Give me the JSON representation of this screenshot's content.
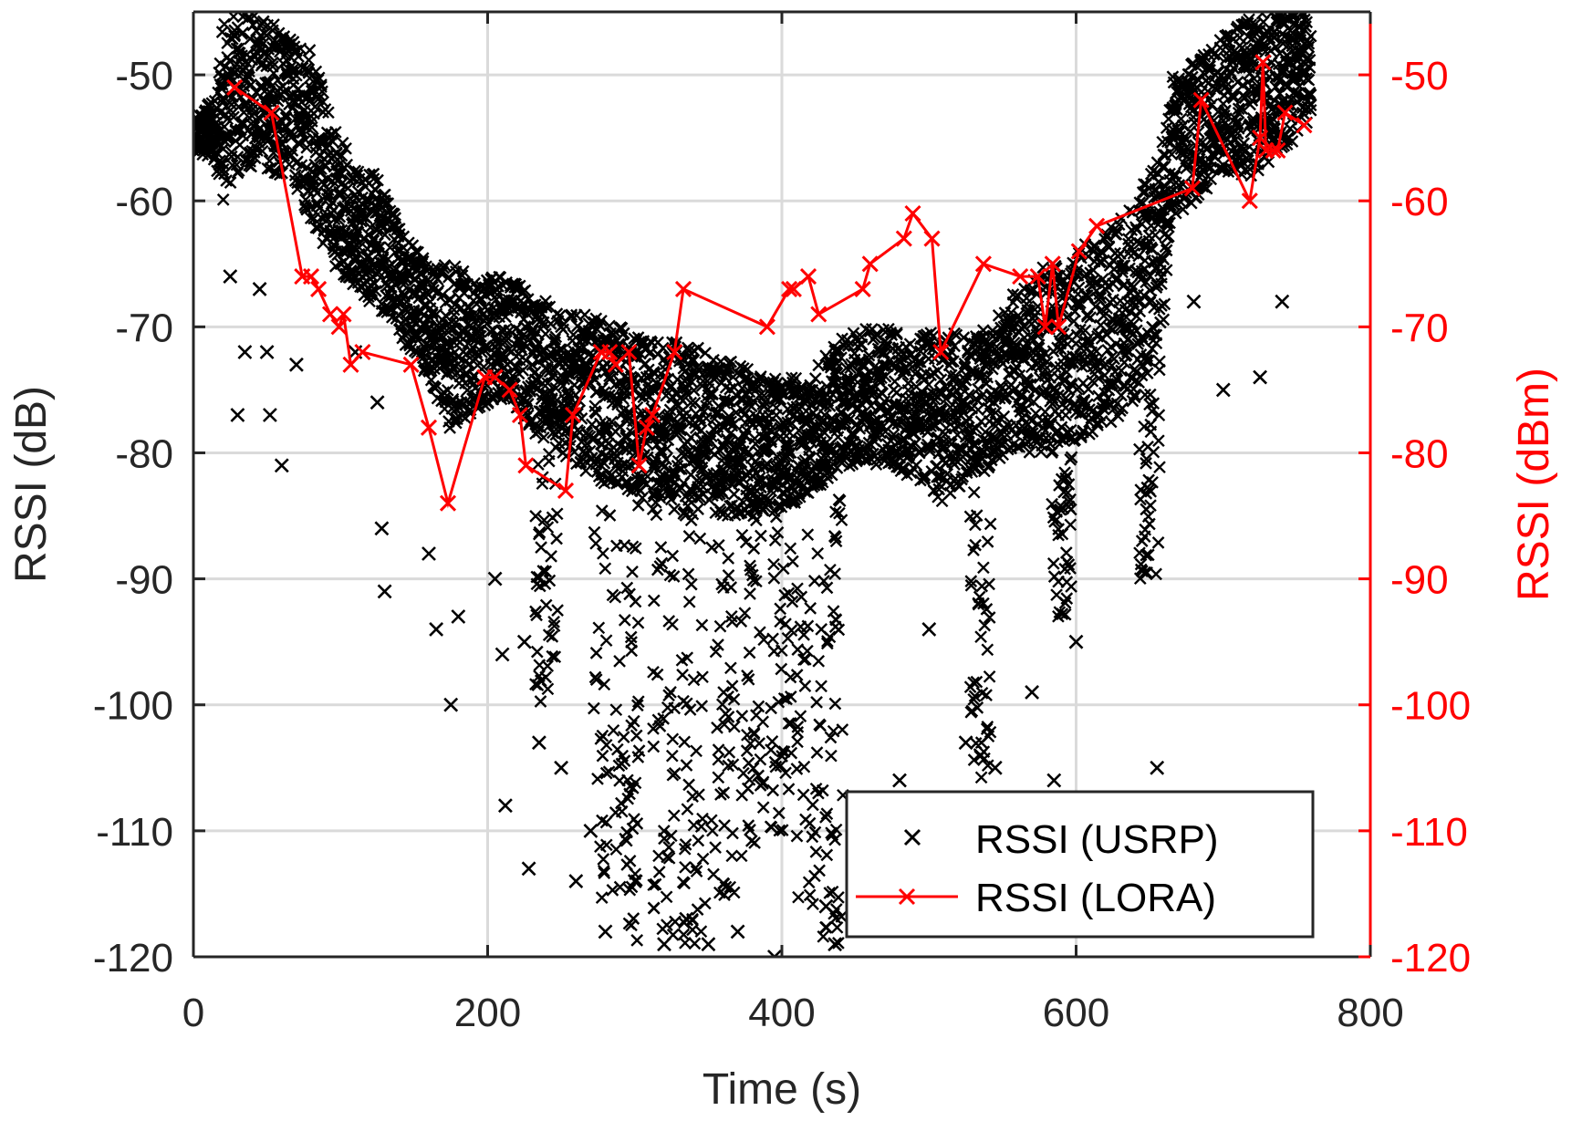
{
  "chart_data": {
    "type": "scatter",
    "xlabel": "Time (s)",
    "ylabel_left": "RSSI (dB)",
    "ylabel_right": "RSSI (dBm)",
    "xlim": [
      0,
      800
    ],
    "ylim_left": [
      -120,
      -45
    ],
    "ylim_right": [
      -120,
      -45
    ],
    "xticks": [
      0,
      200,
      400,
      600,
      800
    ],
    "xtick_labels": [
      "0",
      "200",
      "400",
      "600",
      "800"
    ],
    "yticks": [
      -120,
      -110,
      -100,
      -90,
      -80,
      -70,
      -60,
      -50
    ],
    "ytick_labels": [
      "-120",
      "-110",
      "-100",
      "-90",
      "-80",
      "-70",
      "-60",
      "-50"
    ],
    "grid": true,
    "legend_position": "bottom-right",
    "colors": {
      "usrp": "#000000",
      "lora": "#ff0000",
      "grid": "#dadada"
    },
    "series": [
      {
        "name": "RSSI (USRP)",
        "marker": "x",
        "line": false,
        "axis": "left",
        "envelope": {
          "x": [
            0,
            15,
            20,
            30,
            45,
            55,
            65,
            80,
            95,
            110,
            125,
            140,
            160,
            175,
            190,
            210,
            230,
            250,
            270,
            290,
            310,
            330,
            350,
            370,
            390,
            410,
            420,
            435,
            450,
            470,
            490,
            510,
            530,
            545,
            560,
            580,
            600,
            620,
            640,
            660,
            665,
            680,
            700,
            720,
            740,
            760
          ],
          "upper": [
            -53,
            -52,
            -46,
            -45,
            -45,
            -46,
            -47,
            -48,
            -54,
            -57,
            -58,
            -62,
            -65,
            -65,
            -66,
            -66,
            -67,
            -69,
            -69,
            -70,
            -71,
            -71,
            -72,
            -73,
            -74,
            -74,
            -74,
            -71,
            -70,
            -70,
            -71,
            -70,
            -71,
            -69,
            -67,
            -65,
            -64,
            -62,
            -60,
            -55,
            -50,
            -49,
            -47,
            -45,
            -45,
            -45
          ],
          "core_lower": [
            -56,
            -57,
            -60,
            -58,
            -57,
            -58,
            -58,
            -62,
            -65,
            -67,
            -69,
            -71,
            -74,
            -79,
            -77,
            -76,
            -78,
            -80,
            -82,
            -83,
            -84,
            -85,
            -85,
            -85,
            -85,
            -84,
            -83,
            -82,
            -81,
            -81,
            -82,
            -84,
            -82,
            -81,
            -80,
            -80,
            -79,
            -78,
            -76,
            -70,
            -62,
            -60,
            -58,
            -58,
            -56,
            -54
          ]
        },
        "dips": [
          {
            "x": 25,
            "y": -66
          },
          {
            "x": 30,
            "y": -77
          },
          {
            "x": 35,
            "y": -72
          },
          {
            "x": 45,
            "y": -67
          },
          {
            "x": 50,
            "y": -72
          },
          {
            "x": 52,
            "y": -77
          },
          {
            "x": 60,
            "y": -81
          },
          {
            "x": 70,
            "y": -73
          },
          {
            "x": 110,
            "y": -72
          },
          {
            "x": 125,
            "y": -76
          },
          {
            "x": 128,
            "y": -86
          },
          {
            "x": 130,
            "y": -91
          },
          {
            "x": 160,
            "y": -88
          },
          {
            "x": 165,
            "y": -94
          },
          {
            "x": 175,
            "y": -100
          },
          {
            "x": 180,
            "y": -93
          },
          {
            "x": 205,
            "y": -90
          },
          {
            "x": 210,
            "y": -96
          },
          {
            "x": 212,
            "y": -108
          },
          {
            "x": 225,
            "y": -95
          },
          {
            "x": 228,
            "y": -113
          },
          {
            "x": 235,
            "y": -103
          },
          {
            "x": 250,
            "y": -105
          },
          {
            "x": 260,
            "y": -114
          },
          {
            "x": 270,
            "y": -110
          },
          {
            "x": 280,
            "y": -118
          },
          {
            "x": 300,
            "y": -114
          },
          {
            "x": 320,
            "y": -119
          },
          {
            "x": 335,
            "y": -117
          },
          {
            "x": 350,
            "y": -119
          },
          {
            "x": 370,
            "y": -118
          },
          {
            "x": 395,
            "y": -120
          },
          {
            "x": 430,
            "y": -116
          },
          {
            "x": 436,
            "y": -119
          },
          {
            "x": 480,
            "y": -106
          },
          {
            "x": 500,
            "y": -94
          },
          {
            "x": 525,
            "y": -103
          },
          {
            "x": 535,
            "y": -104
          },
          {
            "x": 545,
            "y": -105
          },
          {
            "x": 570,
            "y": -99
          },
          {
            "x": 585,
            "y": -106
          },
          {
            "x": 600,
            "y": -95
          },
          {
            "x": 655,
            "y": -105
          },
          {
            "x": 680,
            "y": -68
          },
          {
            "x": 700,
            "y": -75
          },
          {
            "x": 725,
            "y": -74
          },
          {
            "x": 740,
            "y": -68
          }
        ],
        "troughs": [
          {
            "x": 240,
            "t0": 232,
            "t1": 248,
            "bottom": -100
          },
          {
            "x": 283,
            "t0": 272,
            "t1": 292,
            "bottom": -116
          },
          {
            "x": 297,
            "t0": 292,
            "t1": 303,
            "bottom": -119
          },
          {
            "x": 320,
            "t0": 312,
            "t1": 328,
            "bottom": -120
          },
          {
            "x": 340,
            "t0": 332,
            "t1": 348,
            "bottom": -119
          },
          {
            "x": 360,
            "t0": 352,
            "t1": 368,
            "bottom": -116
          },
          {
            "x": 380,
            "t0": 372,
            "t1": 388,
            "bottom": -112
          },
          {
            "x": 400,
            "t0": 392,
            "t1": 408,
            "bottom": -110
          },
          {
            "x": 420,
            "t0": 410,
            "t1": 428,
            "bottom": -116
          },
          {
            "x": 435,
            "t0": 428,
            "t1": 442,
            "bottom": -120
          },
          {
            "x": 535,
            "t0": 528,
            "t1": 542,
            "bottom": -106
          },
          {
            "x": 590,
            "t0": 583,
            "t1": 597,
            "bottom": -93
          },
          {
            "x": 650,
            "t0": 643,
            "t1": 657,
            "bottom": -90
          }
        ]
      },
      {
        "name": "RSSI (LORA)",
        "marker": "x",
        "line": true,
        "axis": "right",
        "x": [
          28,
          53,
          74,
          80,
          85,
          93,
          99,
          102,
          107,
          115,
          148,
          160,
          173,
          198,
          205,
          215,
          222,
          226,
          253,
          258,
          277,
          283,
          287,
          296,
          303,
          308,
          312,
          327,
          333,
          390,
          405,
          408,
          418,
          425,
          455,
          460,
          483,
          489,
          502,
          508,
          537,
          562,
          574,
          579,
          584,
          588,
          602,
          614,
          679,
          685,
          718,
          725,
          727,
          729,
          734,
          737,
          742,
          755
        ],
        "y": [
          -51,
          -53,
          -66,
          -66,
          -67,
          -69,
          -70,
          -69,
          -73,
          -72,
          -73,
          -78,
          -84,
          -74,
          -74,
          -75,
          -77,
          -81,
          -83,
          -77,
          -72,
          -72,
          -73,
          -72,
          -81,
          -78,
          -77,
          -72,
          -67,
          -70,
          -67,
          -67,
          -66,
          -69,
          -67,
          -65,
          -63,
          -61,
          -63,
          -72,
          -65,
          -66,
          -66,
          -70,
          -65,
          -70,
          -64,
          -62,
          -59,
          -52,
          -60,
          -55,
          -49,
          -56,
          -56,
          -56,
          -53,
          -54
        ]
      }
    ]
  }
}
